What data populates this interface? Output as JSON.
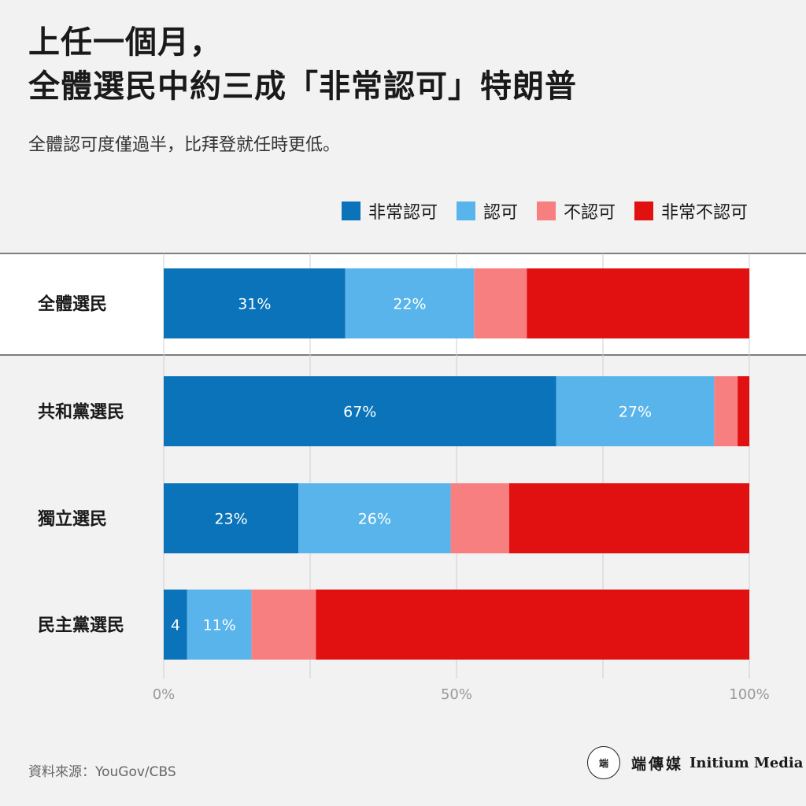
{
  "title_line1": "上任一個月，",
  "title_line2": "全體選民中約三成「非常認可」特朗普",
  "subtitle": "全體認可度僅過半，比拜登就任時更低。",
  "legend": [
    {
      "label": "非常認可",
      "color": "#0a73b9"
    },
    {
      "label": "認可",
      "color": "#58b4ea"
    },
    {
      "label": "不認可",
      "color": "#f77f7f"
    },
    {
      "label": "非常不認可",
      "color": "#e21111"
    }
  ],
  "source": "資料來源：YouGov/CBS",
  "brand": {
    "logo_text": "端",
    "name_cn": "端傳媒",
    "name_en": "Initium Media"
  },
  "chart_data": {
    "type": "bar",
    "orientation": "horizontal",
    "stacked": true,
    "categories": [
      "全體選民",
      "共和黨選民",
      "獨立選民",
      "民主黨選民"
    ],
    "series": [
      {
        "name": "非常認可",
        "color": "#0a73b9",
        "values": [
          31,
          67,
          23,
          4
        ]
      },
      {
        "name": "認可",
        "color": "#58b4ea",
        "values": [
          22,
          27,
          26,
          11
        ]
      },
      {
        "name": "不認可",
        "color": "#f77f7f",
        "values": [
          9,
          4,
          10,
          11
        ]
      },
      {
        "name": "非常不認可",
        "color": "#e21111",
        "values": [
          38,
          2,
          41,
          74
        ]
      }
    ],
    "data_labels": [
      [
        "31%",
        "22%",
        "",
        ""
      ],
      [
        "67%",
        "27%",
        "",
        ""
      ],
      [
        "23%",
        "26%",
        "",
        ""
      ],
      [
        "4",
        "11%",
        "",
        ""
      ]
    ],
    "xlim": [
      0,
      100
    ],
    "xticks": [
      "0%",
      "50%",
      "100%"
    ],
    "grid": true,
    "legend_position": "top-right"
  }
}
